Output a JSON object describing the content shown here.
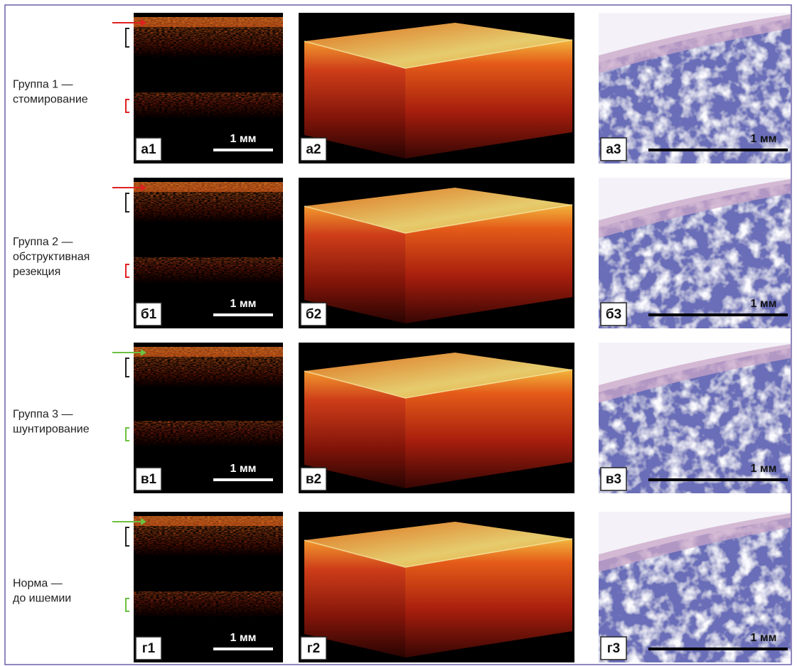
{
  "rows": [
    {
      "label": [
        "Группа 1 —",
        "стомирование"
      ],
      "panels": [
        "а1",
        "а2",
        "а3"
      ],
      "scale_oct": "1 мм",
      "scale_histo": "1 мм"
    },
    {
      "label": [
        "Группа 2 —",
        "обструктивная",
        "резекция"
      ],
      "panels": [
        "б1",
        "б2",
        "б3"
      ],
      "scale_oct": "1 мм",
      "scale_histo": "1 мм"
    },
    {
      "label": [
        "Группа 3 —",
        "шунтирование"
      ],
      "panels": [
        "в1",
        "в2",
        "в3"
      ],
      "scale_oct": "1 мм",
      "scale_histo": "1 мм"
    },
    {
      "label": [
        "Норма —",
        "до ишемии"
      ],
      "panels": [
        "г1",
        "г2",
        "г3"
      ],
      "scale_oct": "1 мм",
      "scale_histo": "1 мм"
    }
  ]
}
